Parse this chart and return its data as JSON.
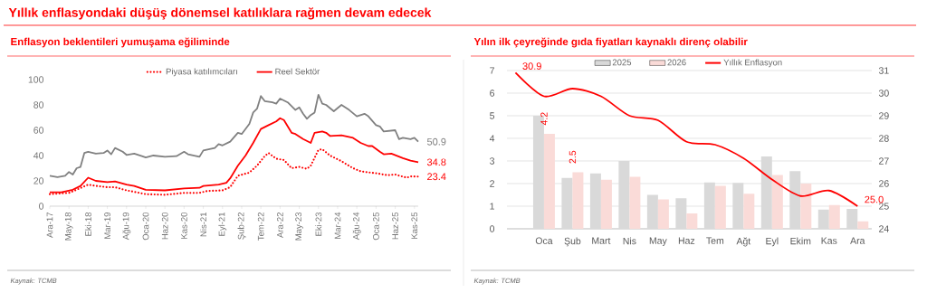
{
  "chart_data": [
    {
      "type": "line",
      "title": "Yıllık enflasyondaki düşüş dönemsel katılıklara rağmen devam edecek",
      "subtitle": "Enflasyon beklentileri yumuşama eğiliminde",
      "xlim": [
        "2017-12",
        "2025-12"
      ],
      "xticks": [
        {
          "value": "2017-12",
          "label": "Ara-17"
        },
        {
          "value": "2018-05",
          "label": "May-18"
        },
        {
          "value": "2018-10",
          "label": "Eki-18"
        },
        {
          "value": "2019-03",
          "label": "Mar-19"
        },
        {
          "value": "2019-08",
          "label": "Ağu-19"
        },
        {
          "value": "2020-01",
          "label": "Oca-20"
        },
        {
          "value": "2020-06",
          "label": "Haz-20"
        },
        {
          "value": "2020-11",
          "label": "Kas-20"
        },
        {
          "value": "2021-04",
          "label": "Nis-21"
        },
        {
          "value": "2021-09",
          "label": "Eyl-21"
        },
        {
          "value": "2022-02",
          "label": "Şub-22"
        },
        {
          "value": "2022-07",
          "label": "Tem-22"
        },
        {
          "value": "2022-12",
          "label": "Ara-22"
        },
        {
          "value": "2023-05",
          "label": "May-23"
        },
        {
          "value": "2023-10",
          "label": "Eki-23"
        },
        {
          "value": "2024-03",
          "label": "Mar-24"
        },
        {
          "value": "2024-08",
          "label": "Ağu-24"
        },
        {
          "value": "2025-01",
          "label": "Oca-25"
        },
        {
          "value": "2025-06",
          "label": "Haz-25"
        },
        {
          "value": "2025-11",
          "label": "Kas-25"
        }
      ],
      "ylim": [
        0,
        100
      ],
      "yticks": [
        0,
        20,
        40,
        60,
        80,
        100
      ],
      "legend": "top",
      "series": [
        {
          "color": "#808080",
          "line_style": "solid",
          "x": [
            "2017-12",
            "2018-02",
            "2018-04",
            "2018-05",
            "2018-06",
            "2018-07",
            "2018-08",
            "2018-09",
            "2018-10",
            "2018-12",
            "2019-02",
            "2019-03",
            "2019-04",
            "2019-05",
            "2019-07",
            "2019-08",
            "2019-10",
            "2019-12",
            "2020-01",
            "2020-03",
            "2020-06",
            "2020-09",
            "2020-11",
            "2020-12",
            "2021-03",
            "2021-04",
            "2021-07",
            "2021-08",
            "2021-09",
            "2021-11",
            "2022-01",
            "2022-02",
            "2022-04",
            "2022-05",
            "2022-06",
            "2022-07",
            "2022-08",
            "2022-10",
            "2022-11",
            "2022-12",
            "2023-02",
            "2023-04",
            "2023-05",
            "2023-06",
            "2023-07",
            "2023-08",
            "2023-09",
            "2023-10",
            "2023-11",
            "2023-12",
            "2024-02",
            "2024-04",
            "2024-06",
            "2024-08",
            "2024-10",
            "2024-11",
            "2025-01",
            "2025-02",
            "2025-03",
            "2025-06",
            "2025-07",
            "2025-08",
            "2025-10",
            "2025-11",
            "2025-12"
          ],
          "values": [
            24,
            23,
            24,
            27,
            25,
            30,
            31,
            42,
            43,
            41.5,
            42,
            44,
            41,
            46,
            43,
            40.5,
            41.5,
            39.5,
            38.5,
            40,
            39,
            39.5,
            43,
            41,
            39,
            44,
            46,
            49,
            48,
            51,
            58,
            57,
            65,
            74,
            77,
            87,
            83,
            82,
            81,
            85,
            82,
            76,
            78,
            73,
            69,
            72,
            74,
            88,
            81,
            80,
            75,
            80,
            76,
            71,
            73,
            71,
            64,
            63,
            59,
            60,
            53,
            54,
            53,
            54,
            50.9
          ],
          "value_labels": [
            null,
            null,
            null,
            null,
            null,
            null,
            null,
            null,
            null,
            null,
            null,
            null,
            null,
            null,
            null,
            null,
            null,
            null,
            null,
            null,
            null,
            null,
            null,
            null,
            null,
            null,
            null,
            null,
            null,
            null,
            null,
            null,
            null,
            null,
            null,
            null,
            null,
            null,
            null,
            null,
            null,
            null,
            null,
            null,
            null,
            null,
            null,
            null,
            null,
            null,
            null,
            null,
            null,
            null,
            null,
            null,
            null,
            null,
            null,
            null,
            null,
            null,
            null,
            null,
            "50.9"
          ]
        },
        {
          "name": "Piyasa katılımcıları",
          "color": "#ff0000",
          "line_style": "dotted",
          "x": [
            "2017-12",
            "2018-05",
            "2018-07",
            "2018-10",
            "2018-12",
            "2019-03",
            "2019-05",
            "2019-08",
            "2020-01",
            "2020-06",
            "2020-11",
            "2021-03",
            "2021-05",
            "2021-09",
            "2021-11",
            "2022-01",
            "2022-04",
            "2022-06",
            "2022-08",
            "2022-09",
            "2022-11",
            "2023-01",
            "2023-03",
            "2023-05",
            "2023-07",
            "2023-08",
            "2023-10",
            "2023-11",
            "2024-01",
            "2024-04",
            "2024-07",
            "2024-09",
            "2025-01",
            "2025-04",
            "2025-06",
            "2025-09",
            "2025-10",
            "2025-12"
          ],
          "values": [
            9.5,
            10.5,
            13,
            17,
            16,
            15,
            15,
            12.5,
            9.5,
            9,
            10.5,
            10.5,
            12,
            12.5,
            15,
            24,
            26.5,
            32,
            39.5,
            42,
            37.5,
            36.5,
            30,
            31,
            29.5,
            32,
            44.5,
            45,
            40,
            35.5,
            30,
            27.5,
            26,
            24.5,
            25,
            22.5,
            23.5,
            23.4
          ],
          "value_labels": [
            null,
            null,
            null,
            null,
            null,
            null,
            null,
            null,
            null,
            null,
            null,
            null,
            null,
            null,
            null,
            null,
            null,
            null,
            null,
            null,
            null,
            null,
            null,
            null,
            null,
            null,
            null,
            null,
            null,
            null,
            null,
            null,
            null,
            null,
            null,
            null,
            null,
            "23.4"
          ]
        },
        {
          "name": "Reel Sektör",
          "color": "#ff0000",
          "line_style": "solid",
          "x": [
            "2017-12",
            "2018-03",
            "2018-06",
            "2018-08",
            "2018-10",
            "2018-12",
            "2019-03",
            "2019-05",
            "2019-08",
            "2019-10",
            "2020-01",
            "2020-06",
            "2020-11",
            "2021-03",
            "2021-04",
            "2021-08",
            "2021-10",
            "2021-11",
            "2022-01",
            "2022-03",
            "2022-05",
            "2022-07",
            "2022-09",
            "2022-11",
            "2022-12",
            "2023-01",
            "2023-03",
            "2023-04",
            "2023-06",
            "2023-08",
            "2023-09",
            "2023-11",
            "2023-12",
            "2024-01",
            "2024-04",
            "2024-07",
            "2024-09",
            "2024-11",
            "2024-12",
            "2025-02",
            "2025-03",
            "2025-05",
            "2025-08",
            "2025-10",
            "2025-12"
          ],
          "values": [
            11,
            11,
            13,
            16,
            22.5,
            20,
            19,
            19.5,
            17,
            16,
            13,
            12.5,
            14,
            14.5,
            16,
            17,
            18.5,
            22,
            32,
            40,
            50,
            61,
            64,
            67,
            69.5,
            68,
            58,
            57,
            53,
            50,
            58,
            59,
            58,
            55.5,
            56,
            54,
            50,
            47.5,
            47.5,
            43,
            41,
            41.5,
            38,
            36,
            34.8
          ],
          "value_labels": [
            null,
            null,
            null,
            null,
            null,
            null,
            null,
            null,
            null,
            null,
            null,
            null,
            null,
            null,
            null,
            null,
            null,
            null,
            null,
            null,
            null,
            null,
            null,
            null,
            null,
            null,
            null,
            null,
            null,
            null,
            null,
            null,
            null,
            null,
            null,
            null,
            null,
            null,
            null,
            null,
            null,
            null,
            null,
            null,
            "34.8"
          ]
        }
      ],
      "annotations": [
        "Kaynak: TCMB"
      ]
    },
    {
      "type": "bar",
      "title": "Yılın ilk çeyreğinde gıda fiyatları kaynaklı direnç olabilir",
      "categories": [
        null,
        "Oca",
        "Şub",
        "Mart",
        "Nis",
        "May",
        "Haz",
        "Tem",
        "Ağt",
        "Eyl",
        "Ekim",
        "Kas",
        "Ara"
      ],
      "ylim": [
        0,
        7
      ],
      "yticks": [
        0,
        1,
        2,
        3,
        4,
        5,
        6,
        7
      ],
      "y2lim": [
        24,
        31
      ],
      "y2ticks": [
        24,
        25,
        26,
        27,
        28,
        29,
        30,
        31
      ],
      "grid": "y",
      "legend": "top",
      "series": [
        {
          "name": "2025",
          "color": "#d9d9d9",
          "values": [
            null,
            5.0,
            2.25,
            2.45,
            3.0,
            1.5,
            1.35,
            2.05,
            2.03,
            3.2,
            2.55,
            0.85,
            0.88
          ]
        },
        {
          "name": "2026",
          "color": "#fadbd8",
          "values": [
            null,
            4.2,
            2.5,
            2.17,
            2.3,
            1.3,
            0.68,
            1.9,
            1.55,
            2.38,
            2.0,
            1.05,
            0.33
          ],
          "value_labels": [
            null,
            "4.2",
            "2.5",
            null,
            null,
            null,
            null,
            null,
            null,
            null,
            null,
            null,
            null
          ]
        },
        {
          "name": "Yıllık Enflasyon",
          "type": "line",
          "axis": "y2",
          "color": "#ff0000",
          "values": [
            30.9,
            29.86,
            30.2,
            29.86,
            29.0,
            28.8,
            27.85,
            27.72,
            27.12,
            26.18,
            25.45,
            25.69,
            25.0
          ],
          "value_labels": [
            "30.9",
            null,
            null,
            null,
            null,
            null,
            null,
            null,
            null,
            null,
            null,
            null,
            "25.0"
          ]
        }
      ],
      "annotations": [
        "Kaynak: TCMB"
      ]
    }
  ]
}
